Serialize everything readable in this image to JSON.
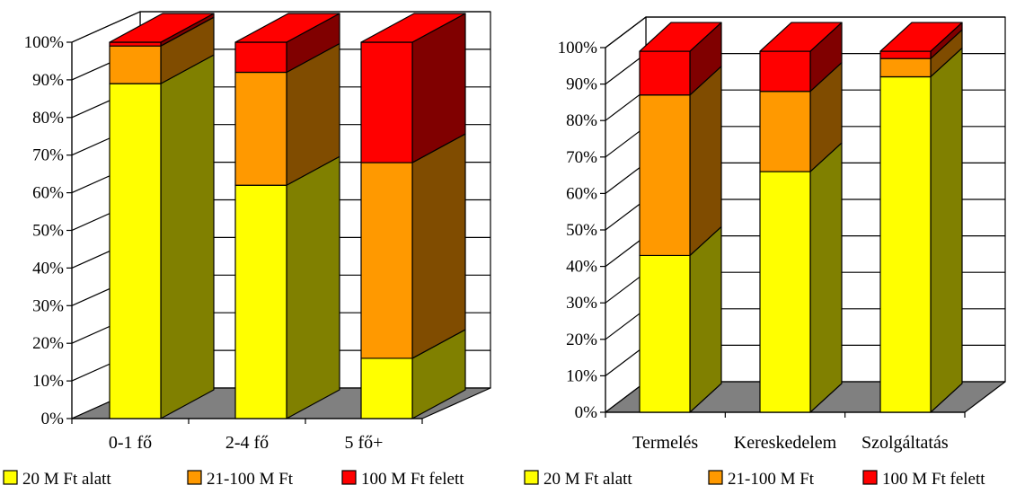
{
  "colors": {
    "series_front": [
      "#FFFF00",
      "#FF9900",
      "#FF0000"
    ],
    "series_side": [
      "#808000",
      "#804C00",
      "#800000"
    ],
    "series_top": [
      "#C0C000",
      "#C07300",
      "#C00000"
    ],
    "floor": "#808080",
    "axis": "#000000"
  },
  "chart_data": [
    {
      "type": "bar",
      "stacked": true,
      "three_d": true,
      "categories": [
        "0-1 fő",
        "2-4 fő",
        "5 fő+"
      ],
      "series": [
        {
          "name": "20 M Ft alatt",
          "values": [
            0.89,
            0.62,
            0.16
          ]
        },
        {
          "name": "21-100 M Ft",
          "values": [
            0.1,
            0.3,
            0.52
          ]
        },
        {
          "name": "100 M Ft felett",
          "values": [
            0.01,
            0.08,
            0.32
          ]
        }
      ],
      "yticks": [
        "0%",
        "10%",
        "20%",
        "30%",
        "40%",
        "50%",
        "60%",
        "70%",
        "80%",
        "90%",
        "100%"
      ],
      "ylim": [
        0,
        1
      ],
      "grid": true,
      "legend": "bottom"
    },
    {
      "type": "bar",
      "stacked": true,
      "three_d": true,
      "categories": [
        "Termelés",
        "Kereskedelem",
        "Szolgáltatás"
      ],
      "series": [
        {
          "name": "20 M Ft alatt",
          "values": [
            0.43,
            0.66,
            0.92
          ]
        },
        {
          "name": "21-100 M Ft",
          "values": [
            0.44,
            0.22,
            0.05
          ]
        },
        {
          "name": "100 M Ft felett",
          "values": [
            0.12,
            0.11,
            0.02
          ]
        }
      ],
      "yticks": [
        "0%",
        "10%",
        "20%",
        "30%",
        "40%",
        "50%",
        "60%",
        "70%",
        "80%",
        "90%",
        "100%"
      ],
      "ylim": [
        0,
        1
      ],
      "grid": true,
      "legend": "bottom"
    }
  ]
}
